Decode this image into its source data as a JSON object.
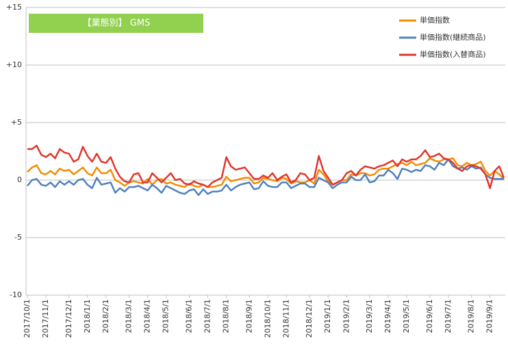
{
  "chart_data": {
    "type": "line",
    "annotation": "【業態別】 GMS",
    "categories": [
      "2017/10/1",
      null,
      null,
      null,
      "2017/11/1",
      null,
      null,
      null,
      null,
      "2017/12/1",
      null,
      null,
      null,
      "2018/1/1",
      null,
      null,
      null,
      "2018/2/1",
      null,
      null,
      null,
      null,
      "2018/3/1",
      null,
      null,
      null,
      "2018/4/1",
      null,
      null,
      null,
      "2018/5/1",
      null,
      null,
      null,
      null,
      "2018/6/1",
      null,
      null,
      null,
      "2018/7/1",
      null,
      null,
      null,
      "2018/8/1",
      null,
      null,
      null,
      null,
      "2018/9/1",
      null,
      null,
      null,
      "2018/10/1",
      null,
      null,
      null,
      "2018/11/1",
      null,
      null,
      null,
      null,
      "2018/12/1",
      null,
      null,
      null,
      "2019/1/1",
      null,
      null,
      null,
      "2019/2/1",
      null,
      null,
      null,
      null,
      "2019/3/1",
      null,
      null,
      null,
      "2019/4/1",
      null,
      null,
      null,
      "2019/5/1",
      null,
      null,
      null,
      null,
      "2019/6/1",
      null,
      null,
      null,
      "2019/7/1",
      null,
      null,
      null,
      null,
      "2019/8/1",
      null,
      null,
      null,
      "2019/9/1",
      null,
      null,
      null
    ],
    "series": [
      {
        "name": "単価指数",
        "color": "#f28c00",
        "values": [
          0.7,
          1.1,
          1.3,
          0.6,
          0.5,
          0.8,
          0.5,
          1.0,
          0.8,
          0.9,
          0.5,
          0.8,
          1.1,
          0.6,
          0.4,
          1.1,
          0.6,
          0.6,
          0.9,
          0.0,
          -0.2,
          -0.5,
          -0.2,
          -0.1,
          -0.2,
          -0.3,
          0.1,
          -0.4,
          0.0,
          0.1,
          -0.3,
          -0.2,
          -0.4,
          -0.5,
          -0.6,
          -0.3,
          -0.5,
          -0.6,
          -0.4,
          -0.6,
          -0.6,
          -0.5,
          -0.4,
          0.3,
          -0.1,
          0.0,
          0.1,
          0.2,
          0.2,
          -0.3,
          -0.2,
          0.2,
          0.1,
          0.0,
          -0.1,
          0.2,
          0.1,
          -0.3,
          -0.1,
          -0.2,
          -0.2,
          0.0,
          -0.3,
          0.9,
          0.5,
          -0.1,
          -0.4,
          -0.2,
          0.0,
          0.0,
          0.5,
          0.4,
          0.6,
          0.6,
          0.4,
          0.5,
          0.9,
          1.0,
          1.0,
          1.2,
          1.4,
          1.5,
          1.3,
          1.6,
          1.3,
          1.4,
          1.5,
          1.9,
          1.7,
          1.6,
          1.8,
          1.8,
          1.9,
          1.3,
          1.2,
          1.5,
          1.3,
          1.4,
          1.6,
          0.8,
          0.4,
          0.8,
          0.5,
          0.1
        ]
      },
      {
        "name": "単価指数(継続商品)",
        "color": "#4f81bd",
        "values": [
          -0.5,
          0.0,
          0.1,
          -0.4,
          -0.5,
          -0.2,
          -0.6,
          -0.1,
          -0.4,
          -0.1,
          -0.4,
          0.0,
          0.1,
          -0.4,
          -0.7,
          0.2,
          -0.4,
          -0.3,
          -0.2,
          -1.1,
          -0.7,
          -1.0,
          -0.6,
          -0.6,
          -0.5,
          -0.7,
          -0.9,
          -0.4,
          -0.7,
          -1.1,
          -0.5,
          -0.7,
          -0.9,
          -1.1,
          -1.2,
          -0.9,
          -0.8,
          -1.3,
          -0.8,
          -1.2,
          -1.0,
          -1.0,
          -0.9,
          -0.4,
          -0.9,
          -0.6,
          -0.4,
          -0.3,
          -0.2,
          -0.8,
          -0.7,
          -0.1,
          -0.5,
          -0.6,
          -0.6,
          -0.2,
          -0.2,
          -0.7,
          -0.5,
          -0.3,
          -0.3,
          -0.6,
          -0.6,
          0.2,
          0.0,
          -0.2,
          -0.7,
          -0.4,
          -0.2,
          -0.2,
          0.3,
          0.0,
          0.0,
          0.5,
          -0.2,
          -0.1,
          0.4,
          0.4,
          0.9,
          0.6,
          0.1,
          1.0,
          0.9,
          0.7,
          0.9,
          0.8,
          1.3,
          1.2,
          0.9,
          1.5,
          1.3,
          1.8,
          1.2,
          1.0,
          1.1,
          0.9,
          1.2,
          1.0,
          1.1,
          0.5,
          0.2,
          0.1,
          0.1,
          0.1
        ]
      },
      {
        "name": "単価指数(入替商品)",
        "color": "#e0362c",
        "values": [
          2.7,
          2.7,
          3.0,
          2.2,
          2.0,
          2.3,
          1.9,
          2.7,
          2.4,
          2.3,
          1.6,
          1.8,
          2.9,
          2.1,
          1.6,
          2.3,
          1.6,
          1.5,
          2.0,
          1.0,
          0.3,
          -0.1,
          -0.2,
          0.5,
          0.6,
          -0.2,
          -0.2,
          0.6,
          0.2,
          -0.2,
          0.2,
          0.6,
          0.0,
          0.1,
          -0.3,
          -0.4,
          -0.1,
          -0.3,
          -0.4,
          -0.6,
          -0.2,
          0.0,
          0.2,
          2.0,
          1.2,
          0.9,
          1.0,
          1.1,
          0.6,
          0.1,
          0.1,
          0.4,
          0.2,
          0.6,
          0.0,
          0.3,
          0.5,
          -0.2,
          0.0,
          0.6,
          0.5,
          0.0,
          0.2,
          2.1,
          0.8,
          0.2,
          -0.4,
          -0.2,
          0.0,
          0.6,
          0.8,
          0.4,
          0.9,
          1.2,
          1.1,
          1.0,
          1.2,
          1.3,
          1.5,
          1.7,
          1.2,
          1.8,
          1.6,
          1.8,
          1.8,
          2.1,
          2.6,
          2.0,
          2.1,
          2.3,
          1.9,
          1.8,
          1.5,
          1.0,
          0.8,
          1.2,
          1.3,
          1.2,
          1.0,
          0.5,
          -0.7,
          0.8,
          1.2,
          0.2
        ]
      }
    ],
    "ylim": [
      -10,
      15
    ],
    "yticks": [
      -10,
      -5,
      0,
      {
        "value": 5,
        "label": "+5"
      },
      {
        "value": 10,
        "label": "+10"
      },
      {
        "value": 15,
        "label": "+15"
      }
    ],
    "grid": true
  }
}
